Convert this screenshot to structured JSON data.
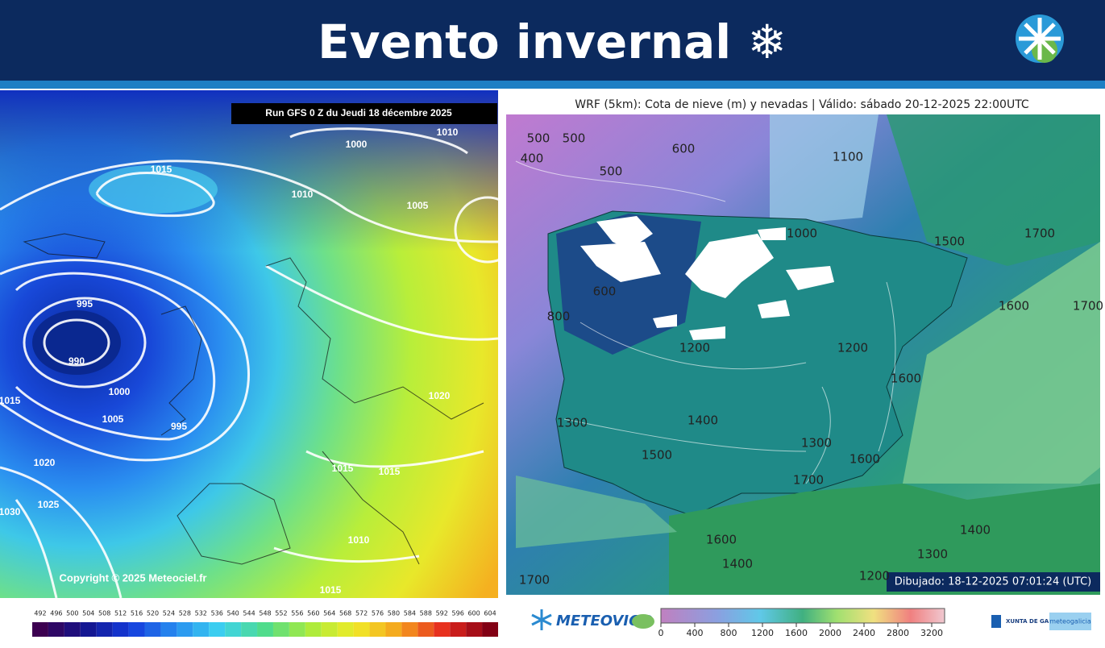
{
  "header": {
    "title": "Evento invernal ❄"
  },
  "left_map": {
    "run_label": "Run GFS 0 Z du Jeudi 18 décembre 2025",
    "copyright": "Copyright © 2025 Meteociel.fr",
    "isobar_labels": [
      1010,
      1000,
      1015,
      1010,
      1005,
      995,
      990,
      1000,
      1005,
      995,
      1015,
      1020,
      1020,
      1025,
      1030,
      1015,
      1015,
      1010,
      1015
    ],
    "colorbar": {
      "ticks": [
        492,
        496,
        500,
        504,
        508,
        512,
        516,
        520,
        524,
        528,
        532,
        536,
        540,
        544,
        548,
        552,
        556,
        560,
        564,
        568,
        572,
        576,
        580,
        584,
        588,
        592,
        596,
        600,
        604
      ]
    }
  },
  "right_map": {
    "title": "WRF (5km): Cota de nieve (m) y nevadas | Válido: sábado 20-12-2025 22:00UTC",
    "drawn_label": "Dibujado: 18-12-2025 07:01:24 (UTC)",
    "contour_labels": [
      500,
      400,
      500,
      500,
      600,
      1100,
      1000,
      1500,
      1700,
      600,
      800,
      1200,
      1200,
      1600,
      1700,
      1600,
      1300,
      1400,
      1300,
      1500,
      1600,
      1700,
      1400,
      1600,
      1400,
      1300,
      1200,
      1700
    ],
    "colorbar": {
      "ticks": [
        0,
        400,
        800,
        1200,
        1600,
        2000,
        2400,
        2800,
        3200
      ]
    }
  },
  "footer": {
    "brand": "METEOVIGO",
    "xunta": "XUNTA DE GALICIA",
    "meteogalicia": "meteogalicia"
  }
}
